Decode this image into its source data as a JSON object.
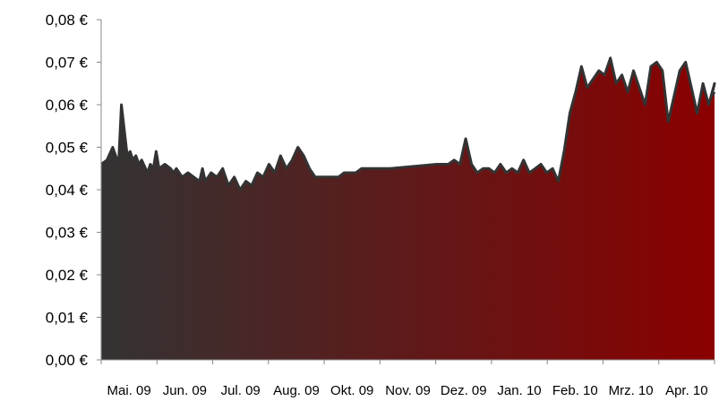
{
  "chart_data": {
    "type": "area",
    "title": "",
    "xlabel": "",
    "ylabel": "",
    "ylim": [
      0,
      0.08
    ],
    "y_ticks": [
      0,
      0.01,
      0.02,
      0.03,
      0.04,
      0.05,
      0.06,
      0.07,
      0.08
    ],
    "y_tick_labels": [
      "0,00 €",
      "0,01 €",
      "0,02 €",
      "0,03 €",
      "0,04 €",
      "0,05 €",
      "0,06 €",
      "0,07 €",
      "0,08 €"
    ],
    "x_tick_labels": [
      "Mai. 09",
      "Jun. 09",
      "Jul. 09",
      "Aug. 09",
      "Okt. 09",
      "Nov. 09",
      "Dez. 09",
      "Jan. 10",
      "Feb. 10",
      "Mrz. 10",
      "Apr. 10"
    ],
    "grid": false,
    "legend": "none",
    "fill_gradient": [
      "#333333",
      "#8b0000"
    ],
    "line_color": "#333333",
    "x": [
      0.0,
      0.1,
      0.2,
      0.3,
      0.35,
      0.45,
      0.5,
      0.55,
      0.6,
      0.65,
      0.7,
      0.8,
      0.85,
      0.9,
      0.95,
      1.0,
      1.1,
      1.2,
      1.25,
      1.3,
      1.4,
      1.5,
      1.6,
      1.7,
      1.75,
      1.8,
      1.9,
      2.0,
      2.1,
      2.2,
      2.3,
      2.4,
      2.5,
      2.6,
      2.7,
      2.8,
      2.9,
      3.0,
      3.1,
      3.2,
      3.3,
      3.4,
      3.5,
      3.6,
      3.7,
      3.8,
      3.9,
      4.0,
      4.1,
      4.2,
      4.3,
      4.4,
      4.5,
      4.6,
      4.7,
      4.8,
      4.9,
      5.0,
      5.8,
      6.0,
      6.1,
      6.2,
      6.3,
      6.4,
      6.5,
      6.6,
      6.7,
      6.8,
      6.9,
      7.0,
      7.1,
      7.2,
      7.3,
      7.4,
      7.5,
      7.6,
      7.7,
      7.8,
      7.9,
      8.0,
      8.1,
      8.2,
      8.3,
      8.4,
      8.5,
      8.6,
      8.7,
      8.8,
      8.9,
      9.0,
      9.1,
      9.2,
      9.3,
      9.4,
      9.5,
      9.6,
      9.7,
      9.8,
      9.9,
      10.0,
      10.1,
      10.2,
      10.3,
      10.4,
      10.5,
      10.6,
      10.55,
      10.6
    ],
    "values": [
      0.046,
      0.047,
      0.05,
      0.046,
      0.06,
      0.048,
      0.049,
      0.047,
      0.048,
      0.046,
      0.047,
      0.044,
      0.046,
      0.045,
      0.049,
      0.045,
      0.046,
      0.045,
      0.044,
      0.045,
      0.043,
      0.044,
      0.043,
      0.042,
      0.045,
      0.042,
      0.044,
      0.043,
      0.045,
      0.041,
      0.043,
      0.04,
      0.042,
      0.041,
      0.044,
      0.043,
      0.046,
      0.044,
      0.048,
      0.045,
      0.047,
      0.05,
      0.048,
      0.045,
      0.043,
      0.043,
      0.043,
      0.043,
      0.043,
      0.044,
      0.044,
      0.044,
      0.045,
      0.045,
      0.045,
      0.045,
      0.045,
      0.045,
      0.046,
      0.046,
      0.047,
      0.046,
      0.052,
      0.046,
      0.044,
      0.045,
      0.045,
      0.044,
      0.046,
      0.044,
      0.045,
      0.044,
      0.047,
      0.044,
      0.045,
      0.046,
      0.044,
      0.045,
      0.042,
      0.049,
      0.058,
      0.063,
      0.069,
      0.064,
      0.066,
      0.068,
      0.067,
      0.071,
      0.065,
      0.067,
      0.063,
      0.068,
      0.064,
      0.06,
      0.069,
      0.07,
      0.068,
      0.056,
      0.062,
      0.068,
      0.07,
      0.064,
      0.058,
      0.065,
      0.06,
      0.065,
      0.062,
      0.063
    ]
  }
}
